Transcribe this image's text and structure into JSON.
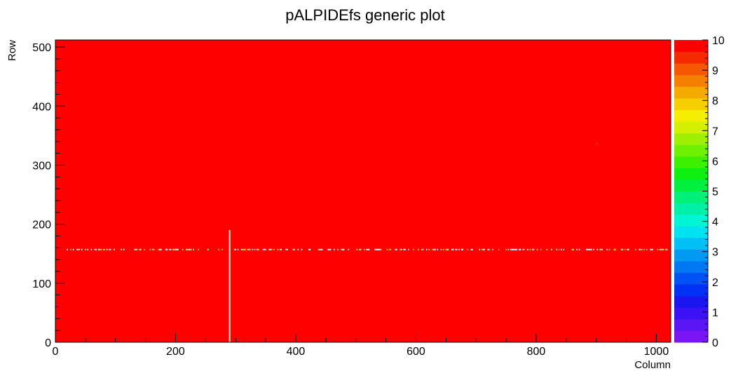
{
  "chart_data": {
    "type": "heatmap",
    "title": "pALPIDEfs generic plot",
    "xlabel": "Column",
    "ylabel": "Row",
    "xlim": [
      0,
      1024
    ],
    "ylim": [
      0,
      512
    ],
    "x_ticks": [
      0,
      200,
      400,
      600,
      800,
      1000
    ],
    "y_ticks": [
      0,
      100,
      200,
      300,
      400,
      500
    ],
    "z_range": [
      0,
      10
    ],
    "z_ticks": [
      0,
      1,
      2,
      3,
      4,
      5,
      6,
      7,
      8,
      9,
      10
    ],
    "fill_value": 10,
    "palette": [
      "#7a16f5",
      "#5a16f5",
      "#3a12f5",
      "#1a16f0",
      "#0032f5",
      "#0052f5",
      "#0078f2",
      "#009af2",
      "#00c0f5",
      "#00e2f0",
      "#00f5d5",
      "#00f0a8",
      "#00f078",
      "#00f040",
      "#10f010",
      "#3cf000",
      "#6ef000",
      "#9ef000",
      "#d2f000",
      "#f5ee00",
      "#f5cf00",
      "#f5aa00",
      "#f58000",
      "#f55800",
      "#f52a00",
      "#ff0000"
    ],
    "features": [
      {
        "kind": "dead_column",
        "x": 290,
        "y_from": 0,
        "y_to": 190,
        "value": 0
      },
      {
        "kind": "sparse_row",
        "y": 157,
        "x_from": 15,
        "x_to": 1020,
        "value": 9
      },
      {
        "kind": "dead_pixel",
        "x": 900,
        "y": 336,
        "value": 9
      }
    ]
  }
}
